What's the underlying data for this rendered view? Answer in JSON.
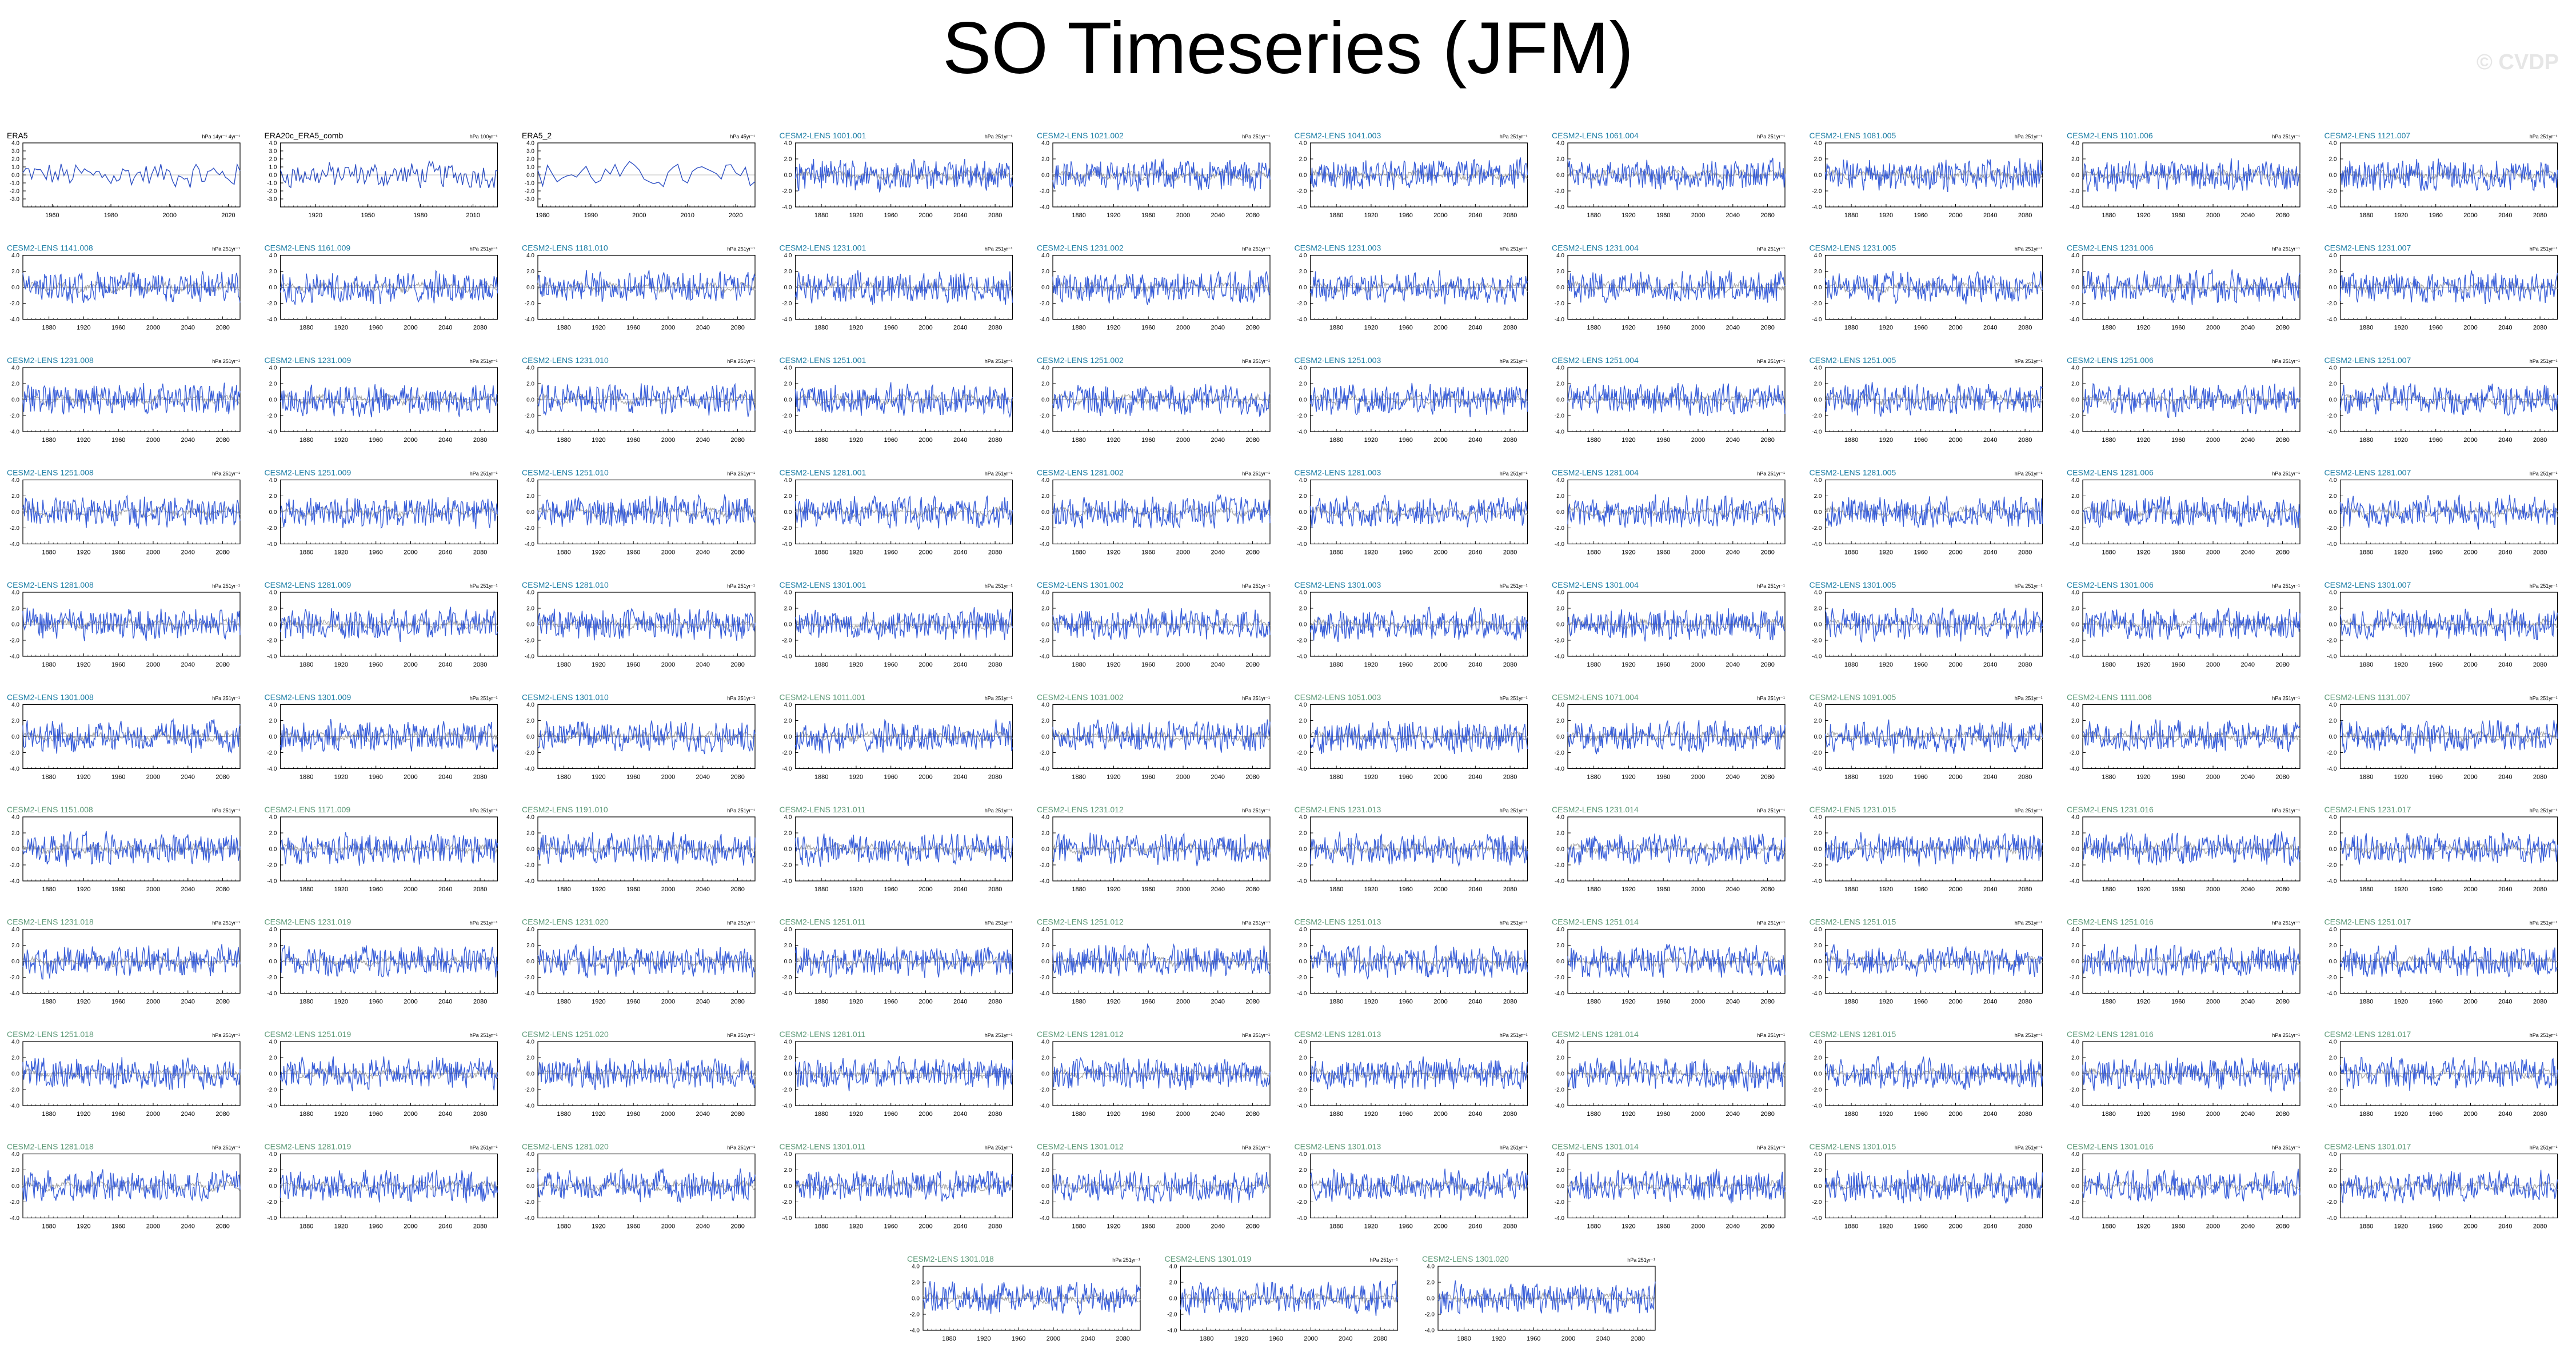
{
  "title": "SO Timeseries (JFM)",
  "watermark": "© CVDP",
  "colors": {
    "model_line": "#3a5fd9",
    "obs_line": "#2d4fc4",
    "mean_line": "#9a9a9a",
    "obs_label": "#000000",
    "label_a": "#1f7fa6",
    "label_b": "#5e9a78"
  },
  "chart_data": {
    "type": "line",
    "layout": "panel-grid",
    "ylim": [
      -4.0,
      4.0
    ],
    "yticks": [
      "4.0",
      "2.0",
      "0.0",
      "-2.0",
      "-4.0"
    ],
    "obs_yticks": [
      "4.0",
      "3.0",
      "2.0",
      "1.0",
      "0.0",
      "-1.0",
      "-2.0",
      "-3.0"
    ],
    "model_xticks": [
      "1880",
      "1920",
      "1960",
      "2000",
      "2040",
      "2080"
    ],
    "model_xrange": [
      1850,
      2100
    ],
    "panels": [
      {
        "label": "ERA5",
        "units": "hPa 14yr⁻¹ 4yr⁻¹",
        "kind": "obs",
        "xticks": [
          "1960",
          "1980",
          "2000",
          "2020"
        ],
        "xrange": [
          1950,
          2024
        ]
      },
      {
        "label": "ERA20c_ERA5_comb",
        "units": "hPa 100yr⁻¹",
        "kind": "obs",
        "xticks": [
          "1920",
          "1950",
          "1980",
          "2010"
        ],
        "xrange": [
          1900,
          2024
        ]
      },
      {
        "label": "ERA5_2",
        "units": "hPa 45yr⁻¹",
        "kind": "obs",
        "xticks": [
          "1980",
          "1990",
          "2000",
          "2010",
          "2020"
        ],
        "xrange": [
          1979,
          2024
        ]
      },
      {
        "label": "CESM2-LENS 1001.001",
        "units": "hPa 251yr⁻¹",
        "kind": "a"
      },
      {
        "label": "CESM2-LENS 1021.002",
        "units": "hPa 251yr⁻¹",
        "kind": "a"
      },
      {
        "label": "CESM2-LENS 1041.003",
        "units": "hPa 251yr⁻¹",
        "kind": "a"
      },
      {
        "label": "CESM2-LENS 1061.004",
        "units": "hPa 251yr⁻¹",
        "kind": "a"
      },
      {
        "label": "CESM2-LENS 1081.005",
        "units": "hPa 251yr⁻¹",
        "kind": "a"
      },
      {
        "label": "CESM2-LENS 1101.006",
        "units": "hPa 251yr⁻¹",
        "kind": "a"
      },
      {
        "label": "CESM2-LENS 1121.007",
        "units": "hPa 251yr⁻¹",
        "kind": "a"
      },
      {
        "label": "CESM2-LENS 1141.008",
        "units": "hPa 251yr⁻¹",
        "kind": "a"
      },
      {
        "label": "CESM2-LENS 1161.009",
        "units": "hPa 251yr⁻¹",
        "kind": "a"
      },
      {
        "label": "CESM2-LENS 1181.010",
        "units": "hPa 251yr⁻¹",
        "kind": "a"
      },
      {
        "label": "CESM2-LENS 1231.001",
        "units": "hPa 251yr⁻¹",
        "kind": "a"
      },
      {
        "label": "CESM2-LENS 1231.002",
        "units": "hPa 251yr⁻¹",
        "kind": "a"
      },
      {
        "label": "CESM2-LENS 1231.003",
        "units": "hPa 251yr⁻¹",
        "kind": "a"
      },
      {
        "label": "CESM2-LENS 1231.004",
        "units": "hPa 251yr⁻¹",
        "kind": "a"
      },
      {
        "label": "CESM2-LENS 1231.005",
        "units": "hPa 251yr⁻¹",
        "kind": "a"
      },
      {
        "label": "CESM2-LENS 1231.006",
        "units": "hPa 251yr⁻¹",
        "kind": "a"
      },
      {
        "label": "CESM2-LENS 1231.007",
        "units": "hPa 251yr⁻¹",
        "kind": "a"
      },
      {
        "label": "CESM2-LENS 1231.008",
        "units": "hPa 251yr⁻¹",
        "kind": "a"
      },
      {
        "label": "CESM2-LENS 1231.009",
        "units": "hPa 251yr⁻¹",
        "kind": "a"
      },
      {
        "label": "CESM2-LENS 1231.010",
        "units": "hPa 251yr⁻¹",
        "kind": "a"
      },
      {
        "label": "CESM2-LENS 1251.001",
        "units": "hPa 251yr⁻¹",
        "kind": "a"
      },
      {
        "label": "CESM2-LENS 1251.002",
        "units": "hPa 251yr⁻¹",
        "kind": "a"
      },
      {
        "label": "CESM2-LENS 1251.003",
        "units": "hPa 251yr⁻¹",
        "kind": "a"
      },
      {
        "label": "CESM2-LENS 1251.004",
        "units": "hPa 251yr⁻¹",
        "kind": "a"
      },
      {
        "label": "CESM2-LENS 1251.005",
        "units": "hPa 251yr⁻¹",
        "kind": "a"
      },
      {
        "label": "CESM2-LENS 1251.006",
        "units": "hPa 251yr⁻¹",
        "kind": "a"
      },
      {
        "label": "CESM2-LENS 1251.007",
        "units": "hPa 251yr⁻¹",
        "kind": "a"
      },
      {
        "label": "CESM2-LENS 1251.008",
        "units": "hPa 251yr⁻¹",
        "kind": "a"
      },
      {
        "label": "CESM2-LENS 1251.009",
        "units": "hPa 251yr⁻¹",
        "kind": "a"
      },
      {
        "label": "CESM2-LENS 1251.010",
        "units": "hPa 251yr⁻¹",
        "kind": "a"
      },
      {
        "label": "CESM2-LENS 1281.001",
        "units": "hPa 251yr⁻¹",
        "kind": "a"
      },
      {
        "label": "CESM2-LENS 1281.002",
        "units": "hPa 251yr⁻¹",
        "kind": "a"
      },
      {
        "label": "CESM2-LENS 1281.003",
        "units": "hPa 251yr⁻¹",
        "kind": "a"
      },
      {
        "label": "CESM2-LENS 1281.004",
        "units": "hPa 251yr⁻¹",
        "kind": "a"
      },
      {
        "label": "CESM2-LENS 1281.005",
        "units": "hPa 251yr⁻¹",
        "kind": "a"
      },
      {
        "label": "CESM2-LENS 1281.006",
        "units": "hPa 251yr⁻¹",
        "kind": "a"
      },
      {
        "label": "CESM2-LENS 1281.007",
        "units": "hPa 251yr⁻¹",
        "kind": "a"
      },
      {
        "label": "CESM2-LENS 1281.008",
        "units": "hPa 251yr⁻¹",
        "kind": "a"
      },
      {
        "label": "CESM2-LENS 1281.009",
        "units": "hPa 251yr⁻¹",
        "kind": "a"
      },
      {
        "label": "CESM2-LENS 1281.010",
        "units": "hPa 251yr⁻¹",
        "kind": "a"
      },
      {
        "label": "CESM2-LENS 1301.001",
        "units": "hPa 251yr⁻¹",
        "kind": "a"
      },
      {
        "label": "CESM2-LENS 1301.002",
        "units": "hPa 251yr⁻¹",
        "kind": "a"
      },
      {
        "label": "CESM2-LENS 1301.003",
        "units": "hPa 251yr⁻¹",
        "kind": "a"
      },
      {
        "label": "CESM2-LENS 1301.004",
        "units": "hPa 251yr⁻¹",
        "kind": "a"
      },
      {
        "label": "CESM2-LENS 1301.005",
        "units": "hPa 251yr⁻¹",
        "kind": "a"
      },
      {
        "label": "CESM2-LENS 1301.006",
        "units": "hPa 251yr⁻¹",
        "kind": "a"
      },
      {
        "label": "CESM2-LENS 1301.007",
        "units": "hPa 251yr⁻¹",
        "kind": "a"
      },
      {
        "label": "CESM2-LENS 1301.008",
        "units": "hPa 251yr⁻¹",
        "kind": "a"
      },
      {
        "label": "CESM2-LENS 1301.009",
        "units": "hPa 251yr⁻¹",
        "kind": "a"
      },
      {
        "label": "CESM2-LENS 1301.010",
        "units": "hPa 251yr⁻¹",
        "kind": "a"
      },
      {
        "label": "CESM2-LENS 1011.001",
        "units": "hPa 251yr⁻¹",
        "kind": "b"
      },
      {
        "label": "CESM2-LENS 1031.002",
        "units": "hPa 251yr⁻¹",
        "kind": "b"
      },
      {
        "label": "CESM2-LENS 1051.003",
        "units": "hPa 251yr⁻¹",
        "kind": "b"
      },
      {
        "label": "CESM2-LENS 1071.004",
        "units": "hPa 251yr⁻¹",
        "kind": "b"
      },
      {
        "label": "CESM2-LENS 1091.005",
        "units": "hPa 251yr⁻¹",
        "kind": "b"
      },
      {
        "label": "CESM2-LENS 1111.006",
        "units": "hPa 251yr⁻¹",
        "kind": "b"
      },
      {
        "label": "CESM2-LENS 1131.007",
        "units": "hPa 251yr⁻¹",
        "kind": "b"
      },
      {
        "label": "CESM2-LENS 1151.008",
        "units": "hPa 251yr⁻¹",
        "kind": "b"
      },
      {
        "label": "CESM2-LENS 1171.009",
        "units": "hPa 251yr⁻¹",
        "kind": "b"
      },
      {
        "label": "CESM2-LENS 1191.010",
        "units": "hPa 251yr⁻¹",
        "kind": "b"
      },
      {
        "label": "CESM2-LENS 1231.011",
        "units": "hPa 251yr⁻¹",
        "kind": "b"
      },
      {
        "label": "CESM2-LENS 1231.012",
        "units": "hPa 251yr⁻¹",
        "kind": "b"
      },
      {
        "label": "CESM2-LENS 1231.013",
        "units": "hPa 251yr⁻¹",
        "kind": "b"
      },
      {
        "label": "CESM2-LENS 1231.014",
        "units": "hPa 251yr⁻¹",
        "kind": "b"
      },
      {
        "label": "CESM2-LENS 1231.015",
        "units": "hPa 251yr⁻¹",
        "kind": "b"
      },
      {
        "label": "CESM2-LENS 1231.016",
        "units": "hPa 251yr⁻¹",
        "kind": "b"
      },
      {
        "label": "CESM2-LENS 1231.017",
        "units": "hPa 251yr⁻¹",
        "kind": "b"
      },
      {
        "label": "CESM2-LENS 1231.018",
        "units": "hPa 251yr⁻¹",
        "kind": "b"
      },
      {
        "label": "CESM2-LENS 1231.019",
        "units": "hPa 251yr⁻¹",
        "kind": "b"
      },
      {
        "label": "CESM2-LENS 1231.020",
        "units": "hPa 251yr⁻¹",
        "kind": "b"
      },
      {
        "label": "CESM2-LENS 1251.011",
        "units": "hPa 251yr⁻¹",
        "kind": "b"
      },
      {
        "label": "CESM2-LENS 1251.012",
        "units": "hPa 251yr⁻¹",
        "kind": "b"
      },
      {
        "label": "CESM2-LENS 1251.013",
        "units": "hPa 251yr⁻¹",
        "kind": "b"
      },
      {
        "label": "CESM2-LENS 1251.014",
        "units": "hPa 251yr⁻¹",
        "kind": "b"
      },
      {
        "label": "CESM2-LENS 1251.015",
        "units": "hPa 251yr⁻¹",
        "kind": "b"
      },
      {
        "label": "CESM2-LENS 1251.016",
        "units": "hPa 251yr⁻¹",
        "kind": "b"
      },
      {
        "label": "CESM2-LENS 1251.017",
        "units": "hPa 251yr⁻¹",
        "kind": "b"
      },
      {
        "label": "CESM2-LENS 1251.018",
        "units": "hPa 251yr⁻¹",
        "kind": "b"
      },
      {
        "label": "CESM2-LENS 1251.019",
        "units": "hPa 251yr⁻¹",
        "kind": "b"
      },
      {
        "label": "CESM2-LENS 1251.020",
        "units": "hPa 251yr⁻¹",
        "kind": "b"
      },
      {
        "label": "CESM2-LENS 1281.011",
        "units": "hPa 251yr⁻¹",
        "kind": "b"
      },
      {
        "label": "CESM2-LENS 1281.012",
        "units": "hPa 251yr⁻¹",
        "kind": "b"
      },
      {
        "label": "CESM2-LENS 1281.013",
        "units": "hPa 251yr⁻¹",
        "kind": "b"
      },
      {
        "label": "CESM2-LENS 1281.014",
        "units": "hPa 251yr⁻¹",
        "kind": "b"
      },
      {
        "label": "CESM2-LENS 1281.015",
        "units": "hPa 251yr⁻¹",
        "kind": "b"
      },
      {
        "label": "CESM2-LENS 1281.016",
        "units": "hPa 251yr⁻¹",
        "kind": "b"
      },
      {
        "label": "CESM2-LENS 1281.017",
        "units": "hPa 251yr⁻¹",
        "kind": "b"
      },
      {
        "label": "CESM2-LENS 1281.018",
        "units": "hPa 251yr⁻¹",
        "kind": "b"
      },
      {
        "label": "CESM2-LENS 1281.019",
        "units": "hPa 251yr⁻¹",
        "kind": "b"
      },
      {
        "label": "CESM2-LENS 1281.020",
        "units": "hPa 251yr⁻¹",
        "kind": "b"
      },
      {
        "label": "CESM2-LENS 1301.011",
        "units": "hPa 251yr⁻¹",
        "kind": "b"
      },
      {
        "label": "CESM2-LENS 1301.012",
        "units": "hPa 251yr⁻¹",
        "kind": "b"
      },
      {
        "label": "CESM2-LENS 1301.013",
        "units": "hPa 251yr⁻¹",
        "kind": "b"
      },
      {
        "label": "CESM2-LENS 1301.014",
        "units": "hPa 251yr⁻¹",
        "kind": "b"
      },
      {
        "label": "CESM2-LENS 1301.015",
        "units": "hPa 251yr⁻¹",
        "kind": "b"
      },
      {
        "label": "CESM2-LENS 1301.016",
        "units": "hPa 251yr⁻¹",
        "kind": "b"
      },
      {
        "label": "CESM2-LENS 1301.017",
        "units": "hPa 251yr⁻¹",
        "kind": "b"
      },
      {
        "label": "CESM2-LENS 1301.018",
        "units": "hPa 251yr⁻¹",
        "kind": "b"
      },
      {
        "label": "CESM2-LENS 1301.019",
        "units": "hPa 251yr⁻¹",
        "kind": "b"
      },
      {
        "label": "CESM2-LENS 1301.020",
        "units": "hPa 251yr⁻¹",
        "kind": "b"
      }
    ]
  }
}
